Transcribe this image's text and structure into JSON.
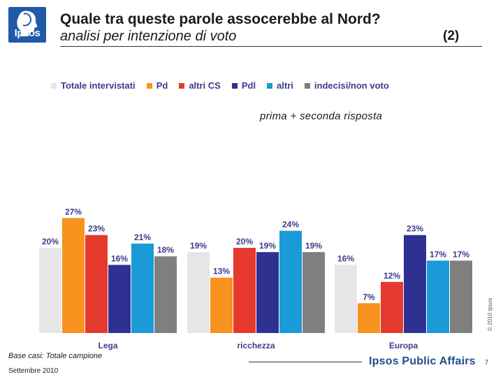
{
  "header": {
    "logo_text": "Ipsos",
    "title": "Quale tra queste parole assocerebbe al Nord?",
    "subtitle": "analisi per intenzione di voto",
    "slide_tag": "(2)"
  },
  "colors": {
    "totale": "#e6e6e6",
    "pd": "#f7931e",
    "altri_cs": "#e63a2e",
    "pdl": "#2e3192",
    "altri": "#1a9ad6",
    "indecisi": "#7f7f7f",
    "accent": "#3b3b8f",
    "brand": "#1e5aa8"
  },
  "chart_data": {
    "type": "bar",
    "title": "prima + seconda risposta",
    "categories": [
      "Lega",
      "ricchezza",
      "Europa"
    ],
    "series": [
      {
        "name": "Totale intervistati",
        "color": "#e6e6e6",
        "values": [
          20,
          19,
          16
        ]
      },
      {
        "name": "Pd",
        "color": "#f7931e",
        "values": [
          27,
          13,
          7
        ]
      },
      {
        "name": "altri CS",
        "color": "#e63a2e",
        "values": [
          23,
          20,
          12
        ]
      },
      {
        "name": "Pdl",
        "color": "#2e3192",
        "values": [
          16,
          19,
          23
        ]
      },
      {
        "name": "altri",
        "color": "#1a9ad6",
        "values": [
          21,
          24,
          17
        ]
      },
      {
        "name": "indecisi/non voto",
        "color": "#7f7f7f",
        "values": [
          18,
          19,
          17
        ]
      }
    ],
    "value_suffix": "%",
    "ylim": [
      0,
      30
    ],
    "xlabel": "",
    "ylabel": ""
  },
  "footer": {
    "copyright": "© 2010 Ipsos",
    "base": "Base casi: Totale campione",
    "date": "Settembre 2010",
    "brand": "Ipsos Public Affairs",
    "page": "7"
  }
}
